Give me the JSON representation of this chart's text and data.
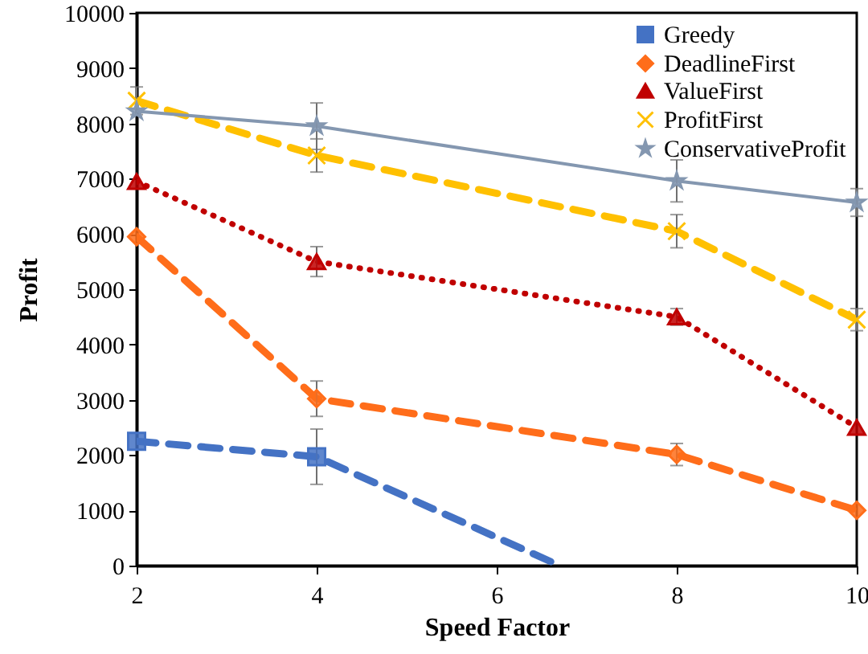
{
  "chart_data": {
    "type": "line",
    "xlabel": "Speed Factor",
    "ylabel": "Profit",
    "x": [
      2,
      4,
      8,
      10
    ],
    "xlim": [
      2,
      10
    ],
    "xticks": [
      2,
      4,
      6,
      8,
      10
    ],
    "ylim": [
      0,
      10000
    ],
    "yticks": [
      0,
      1000,
      2000,
      3000,
      4000,
      5000,
      6000,
      7000,
      8000,
      9000,
      10000
    ],
    "grid": false,
    "legend": "top right",
    "series": [
      {
        "name": "Greedy",
        "color": "#4472c4",
        "marker": "square",
        "line_style": "dashed",
        "x": [
          2,
          4,
          6.7
        ],
        "values": [
          2250,
          1970,
          0
        ],
        "errors": [
          null,
          500,
          null
        ]
      },
      {
        "name": "DeadlineFirst",
        "color": "#ff6d1a",
        "marker": "diamond",
        "line_style": "dashed",
        "values": [
          5950,
          3020,
          2010,
          1000
        ],
        "errors": [
          null,
          320,
          200,
          null
        ]
      },
      {
        "name": "ValueFirst",
        "color": "#c00000",
        "marker": "triangle",
        "line_style": "dotted",
        "values": [
          6950,
          5500,
          4500,
          2500
        ],
        "errors": [
          null,
          270,
          150,
          null
        ]
      },
      {
        "name": "ProfitFirst",
        "color": "#ffc000",
        "marker": "cross",
        "line_style": "dashed",
        "values": [
          8410,
          7420,
          6050,
          4450
        ],
        "errors": [
          250,
          300,
          300,
          200
        ]
      },
      {
        "name": "ConservativeProfit",
        "color": "#8497b0",
        "marker": "star",
        "line_style": "solid",
        "values": [
          8220,
          7950,
          6960,
          6570
        ],
        "errors": [
          null,
          420,
          380,
          250
        ]
      }
    ]
  }
}
